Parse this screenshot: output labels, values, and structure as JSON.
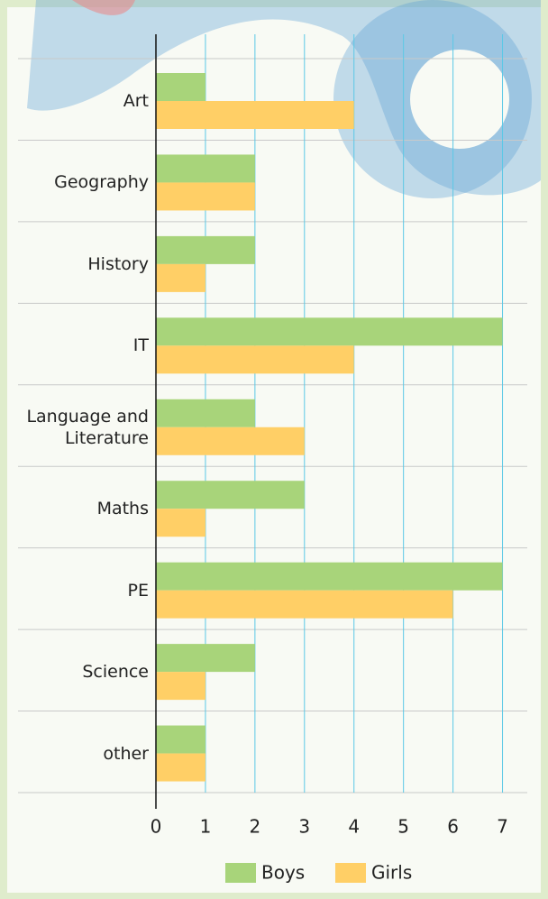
{
  "chart_data": {
    "type": "hbar",
    "categories": [
      "Art",
      "Geography",
      "History",
      "IT",
      "Language and Literature",
      "Maths",
      "PE",
      "Science",
      "other"
    ],
    "series": [
      {
        "name": "Boys",
        "color": "#a8d47a",
        "values": [
          1,
          2,
          2,
          7,
          2,
          3,
          7,
          2,
          1
        ]
      },
      {
        "name": "Girls",
        "color": "#ffcf66",
        "values": [
          4,
          2,
          1,
          4,
          3,
          1,
          6,
          1,
          1
        ]
      }
    ],
    "xlim": [
      0,
      7.5
    ],
    "xticks": [
      0,
      1,
      2,
      3,
      4,
      5,
      6,
      7
    ],
    "grid": true
  }
}
